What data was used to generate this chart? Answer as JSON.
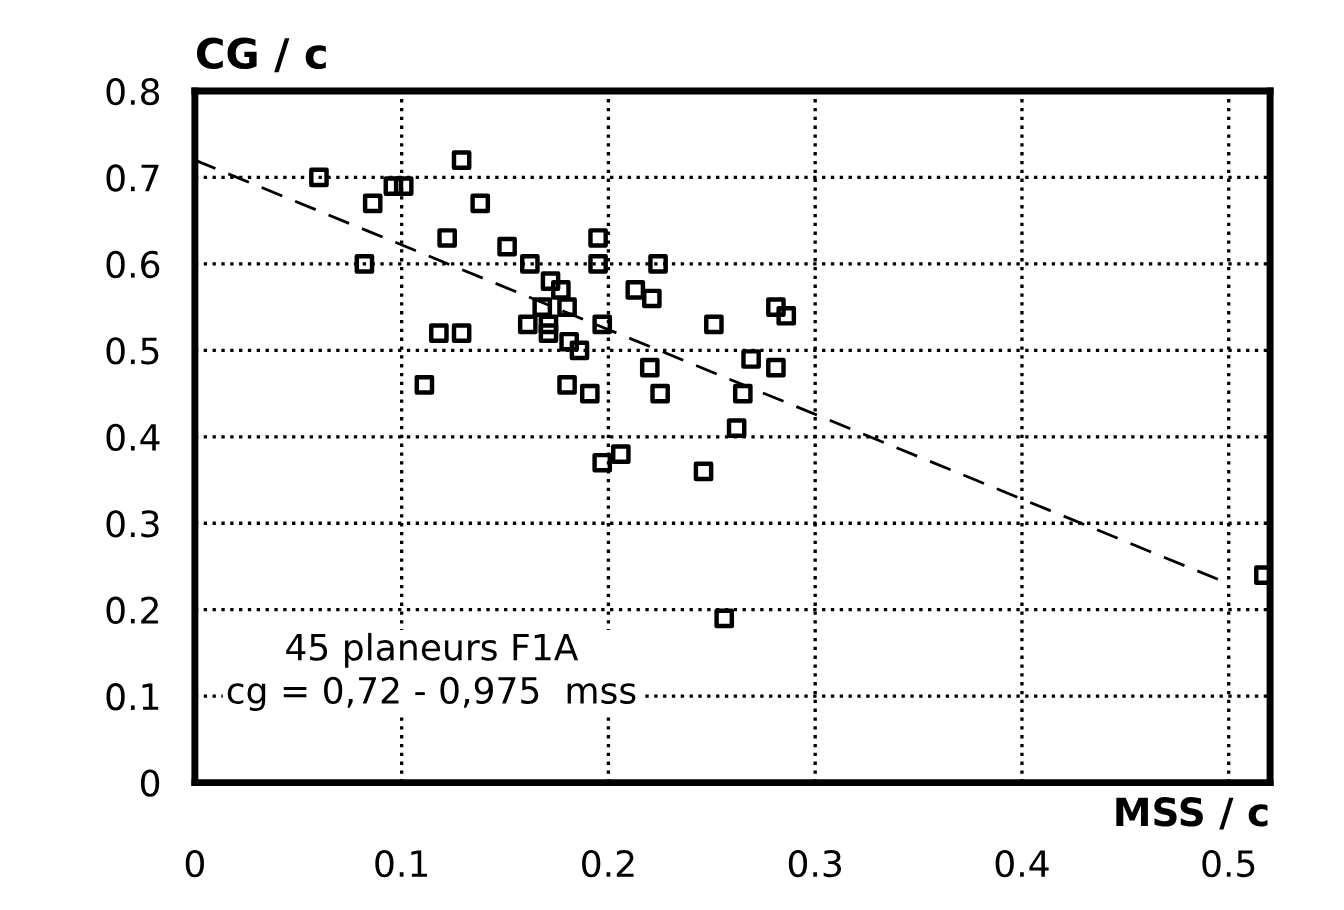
{
  "chart_data": {
    "type": "scatter",
    "xlabel": "MSS / c",
    "ylabel": "CG / c",
    "xlim": [
      0,
      0.52
    ],
    "ylim": [
      0,
      0.8
    ],
    "xticks": [
      0,
      0.1,
      0.2,
      0.3,
      0.4,
      0.5
    ],
    "yticks": [
      0,
      0.1,
      0.2,
      0.3,
      0.4,
      0.5,
      0.6,
      0.7,
      0.8
    ],
    "grid": true,
    "marker": "square",
    "series": [
      {
        "color": "#000000",
        "x": [
          0.06,
          0.086,
          0.096,
          0.101,
          0.129,
          0.138,
          0.122,
          0.082,
          0.118,
          0.129,
          0.111,
          0.151,
          0.162,
          0.195,
          0.195,
          0.172,
          0.177,
          0.18,
          0.168,
          0.161,
          0.171,
          0.171,
          0.181,
          0.186,
          0.197,
          0.18,
          0.191,
          0.224,
          0.213,
          0.221,
          0.251,
          0.281,
          0.286,
          0.22,
          0.269,
          0.281,
          0.225,
          0.265,
          0.262,
          0.197,
          0.206,
          0.246,
          0.256,
          0.517
        ],
        "values": [
          0.7,
          0.67,
          0.69,
          0.69,
          0.72,
          0.67,
          0.63,
          0.6,
          0.52,
          0.52,
          0.46,
          0.62,
          0.6,
          0.63,
          0.6,
          0.58,
          0.57,
          0.55,
          0.55,
          0.53,
          0.53,
          0.52,
          0.51,
          0.5,
          0.53,
          0.46,
          0.45,
          0.6,
          0.57,
          0.56,
          0.53,
          0.55,
          0.54,
          0.48,
          0.49,
          0.48,
          0.45,
          0.45,
          0.41,
          0.37,
          0.38,
          0.36,
          0.19,
          0.24
        ]
      },
      {
        "type": "line",
        "color": "#000000",
        "line_style": "dashed",
        "marker": "none",
        "x": [
          0,
          0.5
        ],
        "values": [
          0.72,
          0.23
        ]
      }
    ],
    "annotations": [
      "45 planeurs F1A",
      "cg = 0,72 - 0,975  mss"
    ]
  }
}
